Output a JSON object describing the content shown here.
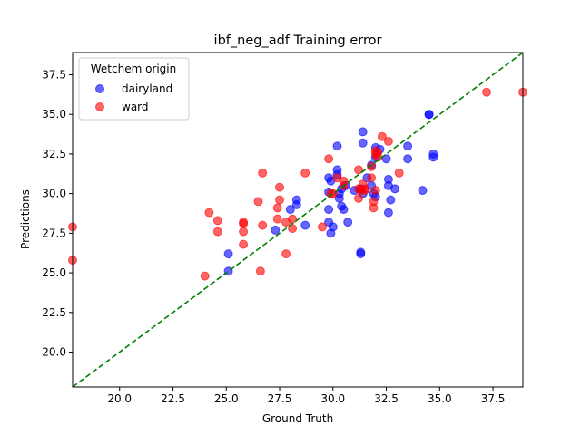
{
  "chart_data": {
    "type": "scatter",
    "title": "ibf_neg_adf Training error",
    "xlabel": "Ground Truth",
    "ylabel": "Predictions",
    "xlim": [
      17.8,
      38.9
    ],
    "ylim": [
      17.8,
      38.9
    ],
    "xticks": [
      "20.0",
      "22.5",
      "25.0",
      "27.5",
      "30.0",
      "32.5",
      "35.0",
      "37.5"
    ],
    "yticks": [
      "20.0",
      "22.5",
      "25.0",
      "27.5",
      "30.0",
      "32.5",
      "35.0",
      "37.5"
    ],
    "grid": false,
    "legend": {
      "title": "Wetchem origin",
      "placement": "top-left"
    },
    "reference_line": {
      "style": "dashed",
      "color": "#008000",
      "from": [
        17.8,
        17.8
      ],
      "to": [
        38.9,
        38.9
      ]
    },
    "series": [
      {
        "name": "dairyland",
        "color": "#0000ff",
        "points": [
          [
            25.1,
            25.1
          ],
          [
            25.1,
            26.2
          ],
          [
            27.3,
            27.7
          ],
          [
            28.0,
            29.0
          ],
          [
            28.3,
            29.3
          ],
          [
            28.3,
            29.6
          ],
          [
            28.7,
            28.0
          ],
          [
            29.8,
            28.2
          ],
          [
            29.9,
            27.5
          ],
          [
            30.0,
            27.9
          ],
          [
            29.8,
            29.0
          ],
          [
            29.8,
            30.1
          ],
          [
            29.9,
            30.8
          ],
          [
            29.8,
            31.0
          ],
          [
            30.2,
            31.2
          ],
          [
            30.2,
            31.5
          ],
          [
            30.2,
            33.0
          ],
          [
            30.3,
            30.0
          ],
          [
            30.3,
            29.7
          ],
          [
            30.4,
            29.2
          ],
          [
            30.5,
            29.0
          ],
          [
            30.7,
            28.2
          ],
          [
            30.4,
            30.3
          ],
          [
            30.6,
            30.5
          ],
          [
            31.0,
            30.2
          ],
          [
            31.3,
            30.3
          ],
          [
            31.3,
            26.3
          ],
          [
            31.3,
            26.2
          ],
          [
            31.4,
            30.0
          ],
          [
            31.4,
            33.2
          ],
          [
            31.4,
            33.9
          ],
          [
            31.6,
            31.0
          ],
          [
            31.8,
            31.8
          ],
          [
            31.8,
            30.5
          ],
          [
            31.9,
            30.0
          ],
          [
            32.0,
            29.8
          ],
          [
            32.0,
            32.3
          ],
          [
            32.0,
            32.9
          ],
          [
            32.2,
            32.8
          ],
          [
            32.5,
            32.2
          ],
          [
            32.6,
            28.8
          ],
          [
            32.7,
            29.6
          ],
          [
            32.6,
            30.5
          ],
          [
            32.6,
            30.9
          ],
          [
            32.9,
            30.3
          ],
          [
            33.5,
            33.0
          ],
          [
            33.5,
            32.2
          ],
          [
            34.2,
            30.2
          ],
          [
            34.5,
            35.0
          ],
          [
            34.5,
            35.0
          ],
          [
            34.7,
            32.5
          ],
          [
            34.7,
            32.3
          ]
        ]
      },
      {
        "name": "ward",
        "color": "#ff0000",
        "points": [
          [
            17.8,
            27.9
          ],
          [
            17.8,
            25.8
          ],
          [
            24.0,
            24.8
          ],
          [
            24.2,
            28.8
          ],
          [
            24.6,
            28.3
          ],
          [
            24.6,
            27.6
          ],
          [
            25.8,
            28.1
          ],
          [
            25.8,
            28.2
          ],
          [
            25.8,
            27.6
          ],
          [
            25.8,
            26.8
          ],
          [
            26.5,
            29.5
          ],
          [
            26.6,
            25.1
          ],
          [
            26.7,
            31.3
          ],
          [
            26.7,
            28.0
          ],
          [
            27.4,
            28.4
          ],
          [
            27.4,
            29.1
          ],
          [
            27.5,
            30.4
          ],
          [
            27.5,
            29.6
          ],
          [
            27.8,
            26.2
          ],
          [
            27.8,
            28.2
          ],
          [
            28.1,
            27.8
          ],
          [
            28.1,
            28.4
          ],
          [
            28.7,
            31.3
          ],
          [
            29.5,
            27.9
          ],
          [
            29.8,
            32.2
          ],
          [
            29.9,
            30.0
          ],
          [
            30.0,
            30.0
          ],
          [
            30.2,
            31.0
          ],
          [
            30.5,
            30.5
          ],
          [
            30.5,
            30.8
          ],
          [
            31.2,
            31.5
          ],
          [
            31.2,
            29.7
          ],
          [
            31.2,
            30.3
          ],
          [
            31.3,
            30.2
          ],
          [
            31.4,
            30.6
          ],
          [
            31.5,
            30.2
          ],
          [
            31.5,
            30.3
          ],
          [
            31.8,
            31.0
          ],
          [
            31.8,
            31.7
          ],
          [
            31.9,
            29.1
          ],
          [
            31.9,
            29.5
          ],
          [
            32.0,
            30.2
          ],
          [
            32.0,
            32.5
          ],
          [
            32.0,
            32.7
          ],
          [
            32.1,
            32.6
          ],
          [
            32.1,
            32.3
          ],
          [
            32.3,
            33.6
          ],
          [
            32.6,
            33.3
          ],
          [
            33.1,
            31.3
          ],
          [
            37.2,
            36.4
          ],
          [
            38.9,
            36.4
          ]
        ]
      }
    ]
  }
}
